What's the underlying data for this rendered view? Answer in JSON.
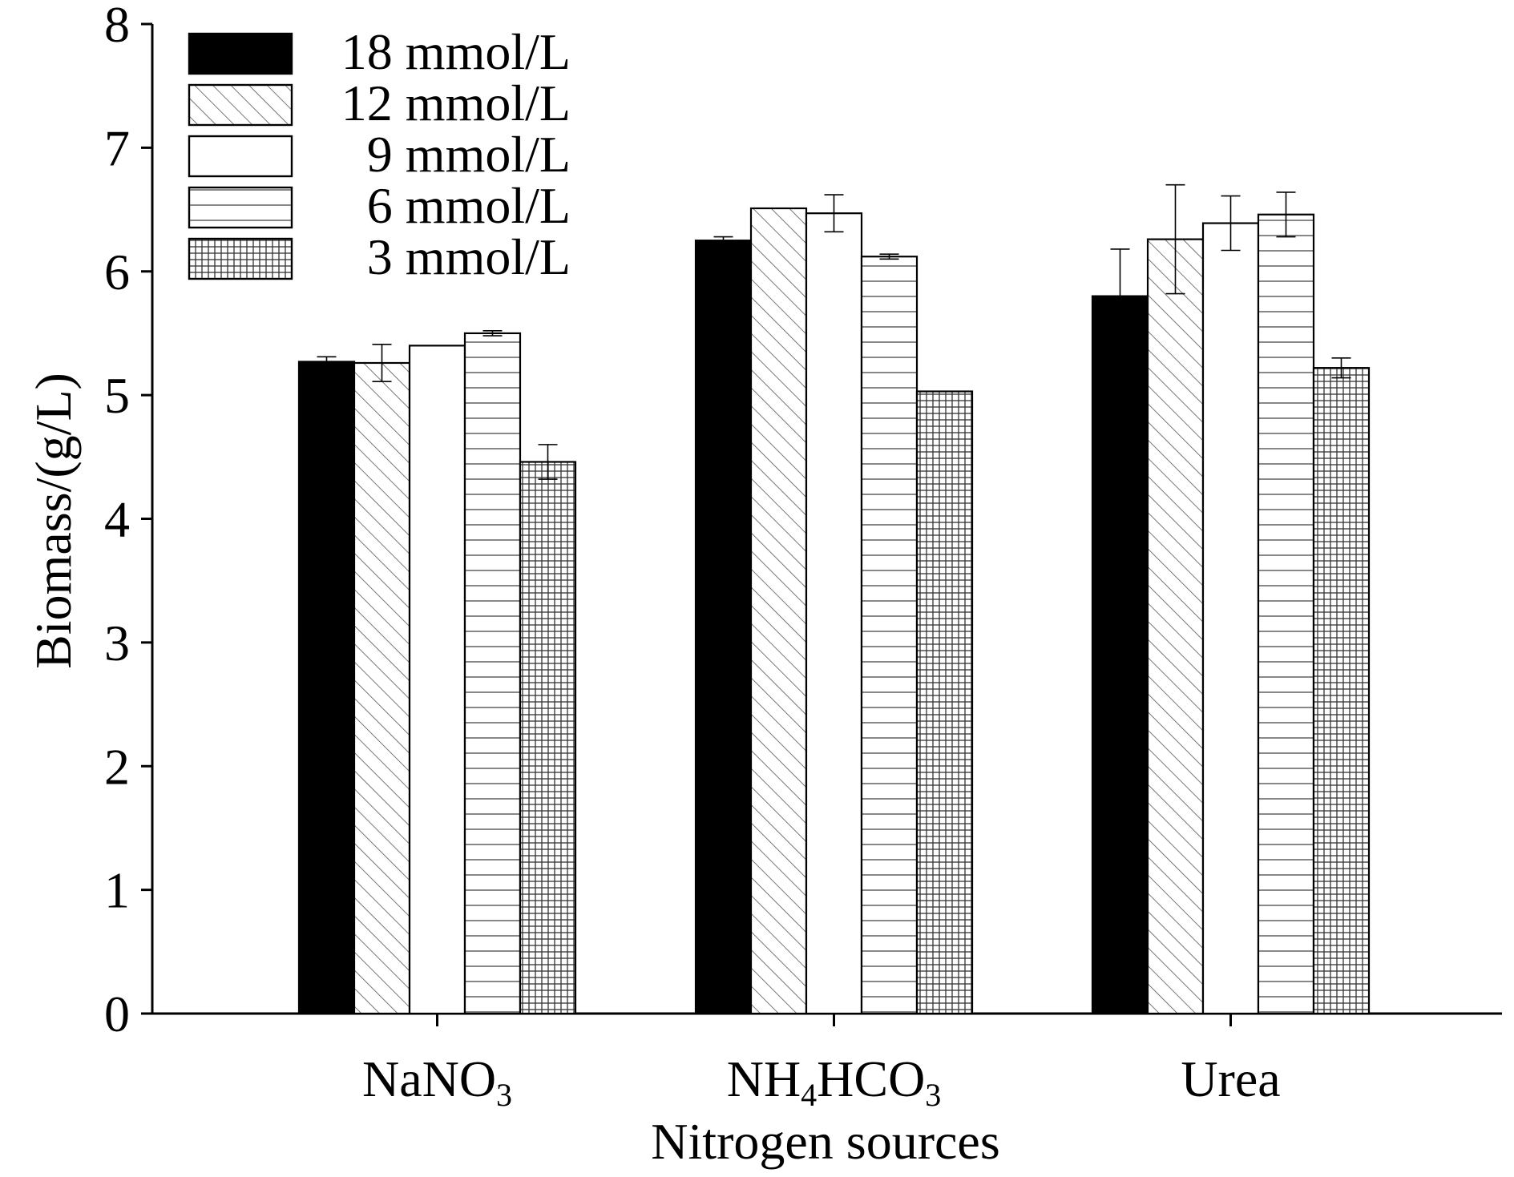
{
  "chart_data": {
    "type": "bar",
    "xlabel": "Nitrogen sources",
    "ylabel": "Biomass/(g/L)",
    "ylim": [
      0,
      8
    ],
    "yticks": [
      "0",
      "1",
      "2",
      "3",
      "4",
      "5",
      "6",
      "7",
      "8"
    ],
    "categories": [
      {
        "main": "NaNO",
        "sub": "3",
        "rest": ""
      },
      {
        "main": "NH",
        "sub": "4",
        "rest": "HCO",
        "sub2": "3"
      },
      {
        "main": "Urea",
        "sub": "",
        "rest": ""
      }
    ],
    "legend_position": "top-left",
    "grid": false,
    "series": [
      {
        "name": "18 mmol/L",
        "pattern": "solid-black",
        "values": [
          5.27,
          6.25,
          5.8
        ],
        "errors": [
          0.04,
          0.03,
          0.38
        ]
      },
      {
        "name": "12 mmol/L",
        "pattern": "diagonal-hatch",
        "values": [
          5.26,
          6.51,
          6.26
        ],
        "errors": [
          0.15,
          0.0,
          0.44
        ]
      },
      {
        "name": "9 mmol/L",
        "pattern": "white",
        "values": [
          5.4,
          6.47,
          6.39
        ],
        "errors": [
          0.0,
          0.15,
          0.22
        ]
      },
      {
        "name": "6 mmol/L",
        "pattern": "horizontal-lines",
        "values": [
          5.5,
          6.12,
          6.46
        ],
        "errors": [
          0.02,
          0.02,
          0.18
        ]
      },
      {
        "name": "3 mmol/L",
        "pattern": "grid-hatch",
        "values": [
          4.46,
          5.03,
          5.22
        ],
        "errors": [
          0.14,
          0.0,
          0.08
        ]
      }
    ]
  }
}
